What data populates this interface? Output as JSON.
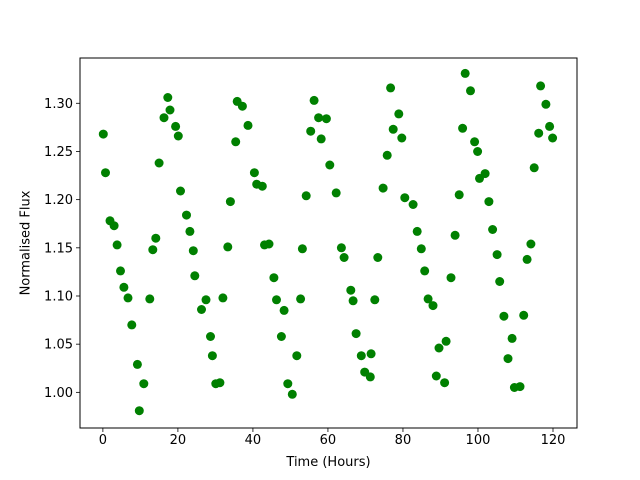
{
  "chart_data": {
    "type": "scatter",
    "title": "",
    "xlabel": "Time (Hours)",
    "ylabel": "Normalised Flux",
    "xlim": [
      -6.1,
      126.4
    ],
    "ylim": [
      0.963,
      1.347
    ],
    "xticks": [
      0,
      20,
      40,
      60,
      80,
      100,
      120
    ],
    "yticks": [
      1.0,
      1.05,
      1.1,
      1.15,
      1.2,
      1.25,
      1.3
    ],
    "grid": false,
    "legend": false,
    "marker_color": "#008000",
    "marker_radius_px": 4.5,
    "axis_color": "#000000",
    "background_color": "#ffffff",
    "series": [
      {
        "name": "normalised-flux",
        "points": [
          [
            0.1,
            1.268
          ],
          [
            0.7,
            1.228
          ],
          [
            1.9,
            1.178
          ],
          [
            3.0,
            1.173
          ],
          [
            3.8,
            1.153
          ],
          [
            4.7,
            1.126
          ],
          [
            5.6,
            1.109
          ],
          [
            6.7,
            1.098
          ],
          [
            7.7,
            1.07
          ],
          [
            9.2,
            1.029
          ],
          [
            9.7,
            0.981
          ],
          [
            10.9,
            1.009
          ],
          [
            12.5,
            1.097
          ],
          [
            13.3,
            1.148
          ],
          [
            14.1,
            1.16
          ],
          [
            15.0,
            1.238
          ],
          [
            16.3,
            1.285
          ],
          [
            17.3,
            1.306
          ],
          [
            17.9,
            1.293
          ],
          [
            19.4,
            1.276
          ],
          [
            20.1,
            1.266
          ],
          [
            20.7,
            1.209
          ],
          [
            22.3,
            1.184
          ],
          [
            23.2,
            1.167
          ],
          [
            24.1,
            1.147
          ],
          [
            24.5,
            1.121
          ],
          [
            26.3,
            1.086
          ],
          [
            27.5,
            1.096
          ],
          [
            28.7,
            1.058
          ],
          [
            29.2,
            1.038
          ],
          [
            30.1,
            1.009
          ],
          [
            31.2,
            1.01
          ],
          [
            32.0,
            1.098
          ],
          [
            33.3,
            1.151
          ],
          [
            34.0,
            1.198
          ],
          [
            35.4,
            1.26
          ],
          [
            35.8,
            1.302
          ],
          [
            37.2,
            1.297
          ],
          [
            38.7,
            1.277
          ],
          [
            40.4,
            1.228
          ],
          [
            41.0,
            1.216
          ],
          [
            42.5,
            1.214
          ],
          [
            43.1,
            1.153
          ],
          [
            44.3,
            1.154
          ],
          [
            45.6,
            1.119
          ],
          [
            46.3,
            1.096
          ],
          [
            47.6,
            1.058
          ],
          [
            48.3,
            1.085
          ],
          [
            49.3,
            1.009
          ],
          [
            50.5,
            0.998
          ],
          [
            51.7,
            1.038
          ],
          [
            52.7,
            1.097
          ],
          [
            53.2,
            1.149
          ],
          [
            54.2,
            1.204
          ],
          [
            55.4,
            1.271
          ],
          [
            56.3,
            1.303
          ],
          [
            57.5,
            1.285
          ],
          [
            58.2,
            1.263
          ],
          [
            59.6,
            1.284
          ],
          [
            60.5,
            1.236
          ],
          [
            62.2,
            1.207
          ],
          [
            63.6,
            1.15
          ],
          [
            64.3,
            1.14
          ],
          [
            66.1,
            1.106
          ],
          [
            66.7,
            1.095
          ],
          [
            67.5,
            1.061
          ],
          [
            68.9,
            1.038
          ],
          [
            69.8,
            1.021
          ],
          [
            71.3,
            1.016
          ],
          [
            71.5,
            1.04
          ],
          [
            72.5,
            1.096
          ],
          [
            73.3,
            1.14
          ],
          [
            74.7,
            1.212
          ],
          [
            75.8,
            1.246
          ],
          [
            76.7,
            1.316
          ],
          [
            77.4,
            1.273
          ],
          [
            78.9,
            1.289
          ],
          [
            79.7,
            1.264
          ],
          [
            80.5,
            1.202
          ],
          [
            82.7,
            1.195
          ],
          [
            83.8,
            1.167
          ],
          [
            84.9,
            1.149
          ],
          [
            85.8,
            1.126
          ],
          [
            86.7,
            1.097
          ],
          [
            88.0,
            1.09
          ],
          [
            88.9,
            1.017
          ],
          [
            89.6,
            1.046
          ],
          [
            91.1,
            1.01
          ],
          [
            91.5,
            1.053
          ],
          [
            92.8,
            1.119
          ],
          [
            93.9,
            1.163
          ],
          [
            95.0,
            1.205
          ],
          [
            95.9,
            1.274
          ],
          [
            96.6,
            1.331
          ],
          [
            98.0,
            1.313
          ],
          [
            99.1,
            1.26
          ],
          [
            99.9,
            1.25
          ],
          [
            100.4,
            1.222
          ],
          [
            101.9,
            1.227
          ],
          [
            102.9,
            1.198
          ],
          [
            103.9,
            1.169
          ],
          [
            105.1,
            1.143
          ],
          [
            105.8,
            1.115
          ],
          [
            106.9,
            1.079
          ],
          [
            108.0,
            1.035
          ],
          [
            109.1,
            1.056
          ],
          [
            109.7,
            1.005
          ],
          [
            111.2,
            1.006
          ],
          [
            112.2,
            1.08
          ],
          [
            113.1,
            1.138
          ],
          [
            114.1,
            1.154
          ],
          [
            115.0,
            1.233
          ],
          [
            116.2,
            1.269
          ],
          [
            116.7,
            1.318
          ],
          [
            118.1,
            1.299
          ],
          [
            119.1,
            1.276
          ],
          [
            119.9,
            1.264
          ]
        ]
      }
    ]
  }
}
